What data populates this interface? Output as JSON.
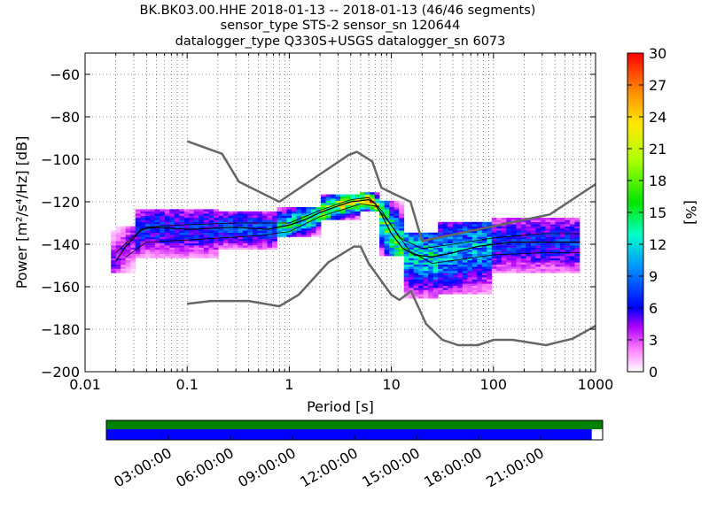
{
  "chart_data": {
    "type": "heatmap",
    "title_lines": [
      "BK.BK03.00.HHE   2018-01-13 -- 2018-01-13  (46/46 segments)",
      "sensor_type STS-2 sensor_sn 120644",
      "datalogger_type Q330S+USGS datalogger_sn 6073"
    ],
    "xlabel": "Period [s]",
    "ylabel": "Power [m²/s⁴/Hz] [dB]",
    "x_scale": "log",
    "xlim": [
      0.01,
      1000
    ],
    "ylim": [
      -200,
      -50
    ],
    "x_ticks": [
      0.01,
      0.1,
      1,
      10,
      100,
      1000
    ],
    "x_tick_labels": [
      "0.01",
      "0.1",
      "1",
      "10",
      "100",
      "1000"
    ],
    "y_ticks": [
      -200,
      -180,
      -160,
      -140,
      -120,
      -100,
      -80,
      -60
    ],
    "y_tick_labels": [
      "−200",
      "−180",
      "−160",
      "−140",
      "−120",
      "−100",
      "−80",
      "−60"
    ],
    "grid": true,
    "colorbar": {
      "label": "[%]",
      "range": [
        0,
        30
      ],
      "ticks": [
        0,
        3,
        6,
        9,
        12,
        15,
        18,
        21,
        24,
        27,
        30
      ],
      "tick_labels": [
        "0",
        "3",
        "6",
        "9",
        "12",
        "15",
        "18",
        "21",
        "24",
        "27",
        "30"
      ]
    },
    "noise_models": [
      {
        "name": "high-noise-model",
        "color": "#666666",
        "points": [
          [
            0.1,
            -91.5
          ],
          [
            0.22,
            -97.4
          ],
          [
            0.32,
            -110.5
          ],
          [
            0.8,
            -120
          ],
          [
            3.8,
            -98
          ],
          [
            4.6,
            -96.5
          ],
          [
            6.5,
            -101
          ],
          [
            8,
            -113.4
          ],
          [
            15.4,
            -120
          ],
          [
            20,
            -138.5
          ],
          [
            354.8,
            -126
          ],
          [
            10000,
            -80
          ]
        ]
      },
      {
        "name": "low-noise-model",
        "color": "#666666",
        "points": [
          [
            0.1,
            -168
          ],
          [
            0.17,
            -166.7
          ],
          [
            0.4,
            -166.7
          ],
          [
            0.8,
            -169.2
          ],
          [
            1.24,
            -163.7
          ],
          [
            2.4,
            -148.6
          ],
          [
            4.3,
            -141.1
          ],
          [
            5,
            -141.1
          ],
          [
            6,
            -149
          ],
          [
            10,
            -163.8
          ],
          [
            12,
            -166.2
          ],
          [
            15.6,
            -162.1
          ],
          [
            21.9,
            -177.5
          ],
          [
            31.6,
            -185
          ],
          [
            45,
            -187.5
          ],
          [
            70,
            -187.5
          ],
          [
            101,
            -185
          ],
          [
            154,
            -185
          ],
          [
            328,
            -187.5
          ],
          [
            600,
            -184.4
          ],
          [
            10000,
            -151.5
          ]
        ]
      }
    ],
    "median_curve": [
      [
        0.02,
        -148
      ],
      [
        0.025,
        -141
      ],
      [
        0.03,
        -137
      ],
      [
        0.035,
        -133
      ],
      [
        0.05,
        -132
      ],
      [
        0.1,
        -133
      ],
      [
        0.3,
        -132
      ],
      [
        0.6,
        -133
      ],
      [
        1,
        -131
      ],
      [
        1.5,
        -128
      ],
      [
        2,
        -125
      ],
      [
        3,
        -122
      ],
      [
        4,
        -120
      ],
      [
        5,
        -119.5
      ],
      [
        6,
        -119
      ],
      [
        7,
        -121
      ],
      [
        8,
        -126
      ],
      [
        10,
        -135
      ],
      [
        13,
        -142
      ],
      [
        17,
        -145
      ],
      [
        25,
        -146
      ],
      [
        40,
        -144
      ],
      [
        70,
        -141
      ],
      [
        150,
        -139
      ],
      [
        300,
        -139
      ],
      [
        700,
        -139
      ]
    ],
    "upper_percentile_curve": [
      [
        0.02,
        -144
      ],
      [
        0.03,
        -136
      ],
      [
        0.04,
        -132
      ],
      [
        0.08,
        -131
      ],
      [
        0.3,
        -130
      ],
      [
        1,
        -130
      ],
      [
        2,
        -124
      ],
      [
        4,
        -119
      ],
      [
        6,
        -118
      ],
      [
        8,
        -124
      ],
      [
        12,
        -137
      ],
      [
        20,
        -142
      ],
      [
        40,
        -140
      ],
      [
        100,
        -137
      ],
      [
        300,
        -135
      ],
      [
        700,
        -135
      ]
    ],
    "lower_percentile_curve": [
      [
        0.025,
        -146
      ],
      [
        0.04,
        -139
      ],
      [
        0.1,
        -138
      ],
      [
        0.5,
        -136
      ],
      [
        1,
        -134
      ],
      [
        2,
        -127
      ],
      [
        5,
        -121
      ],
      [
        7,
        -122
      ],
      [
        10,
        -131
      ],
      [
        15,
        -143
      ],
      [
        25,
        -149
      ],
      [
        50,
        -147
      ],
      [
        100,
        -145
      ],
      [
        300,
        -144
      ],
      [
        700,
        -144
      ]
    ],
    "psd_density_bands": [
      {
        "period_min": 0.018,
        "period_max": 0.03,
        "db_min": -153,
        "db_max": -132,
        "peak_percent": 5
      },
      {
        "period_min": 0.03,
        "period_max": 0.2,
        "db_min": -146,
        "db_max": -124,
        "peak_percent": 8
      },
      {
        "period_min": 0.2,
        "period_max": 0.8,
        "db_min": -142,
        "db_max": -125,
        "peak_percent": 9
      },
      {
        "period_min": 0.8,
        "period_max": 2,
        "db_min": -136,
        "db_max": -123,
        "peak_percent": 17
      },
      {
        "period_min": 2,
        "period_max": 5,
        "db_min": -128,
        "db_max": -117,
        "peak_percent": 22
      },
      {
        "period_min": 5,
        "period_max": 8,
        "db_min": -124,
        "db_max": -116,
        "peak_percent": 28
      },
      {
        "period_min": 8,
        "period_max": 14,
        "db_min": -145,
        "db_max": -120,
        "peak_percent": 18
      },
      {
        "period_min": 14,
        "period_max": 30,
        "db_min": -165,
        "db_max": -135,
        "peak_percent": 14
      },
      {
        "period_min": 30,
        "period_max": 100,
        "db_min": -163,
        "db_max": -130,
        "peak_percent": 12
      },
      {
        "period_min": 100,
        "period_max": 700,
        "db_min": -153,
        "db_max": -128,
        "peak_percent": 8
      }
    ],
    "timeline": {
      "data_availability_color": "#008000",
      "processed_color": "#0000ff",
      "processed_fraction": 0.978,
      "tick_hours": [
        0,
        3,
        6,
        9,
        12,
        15,
        18,
        21,
        24
      ],
      "tick_labels": [
        "03:00:00",
        "06:00:00",
        "09:00:00",
        "12:00:00",
        "15:00:00",
        "18:00:00",
        "21:00:00"
      ],
      "labeled_hours": [
        3,
        6,
        9,
        12,
        15,
        18,
        21
      ]
    }
  }
}
